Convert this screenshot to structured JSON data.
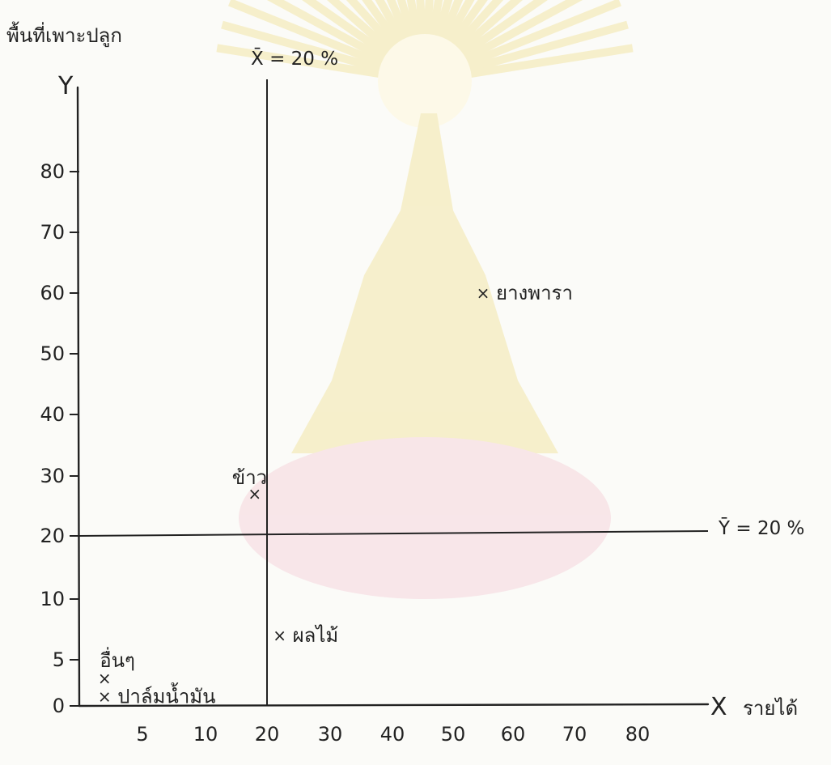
{
  "chart_data": {
    "type": "scatter",
    "title": "",
    "ylabel": "พื้นที่เพาะปลูก",
    "xlabel": "รายได้",
    "x_axis_letter": "X",
    "y_axis_letter": "Y",
    "x_ticks": [
      5,
      10,
      20,
      30,
      40,
      50,
      60,
      70,
      80
    ],
    "y_ticks": [
      0,
      5,
      10,
      20,
      30,
      40,
      50,
      60,
      70,
      80
    ],
    "y_tick_labels": [
      "0",
      "5",
      "10",
      "20",
      "30",
      "40",
      "50",
      "60",
      "70",
      "80"
    ],
    "x_tick_labels": [
      "5",
      "10",
      "20",
      "30",
      "40",
      "50",
      "60",
      "70",
      "80"
    ],
    "reference_lines": [
      {
        "axis": "x",
        "value": 20,
        "label": "X̄ = 20 %"
      },
      {
        "axis": "y",
        "value": 20,
        "label": "Ȳ = 20 %"
      }
    ],
    "points": [
      {
        "label": "ยางพารา",
        "x": 55,
        "y": 60
      },
      {
        "label": "ข้าว",
        "x": 18,
        "y": 27
      },
      {
        "label": "ผลไม้",
        "x": 22,
        "y": 7
      },
      {
        "label": "อื่นๆ",
        "x": 2,
        "y": 3
      },
      {
        "label": "ปาล์มน้ำมัน",
        "x": 2,
        "y": 1
      }
    ],
    "marker": "×",
    "grid": false,
    "legend": "none"
  },
  "colors": {
    "ink": "#222222",
    "paper": "#fbfbf8",
    "watermark_gold": "#f3e6a8",
    "watermark_pink": "#f6d6dc"
  }
}
